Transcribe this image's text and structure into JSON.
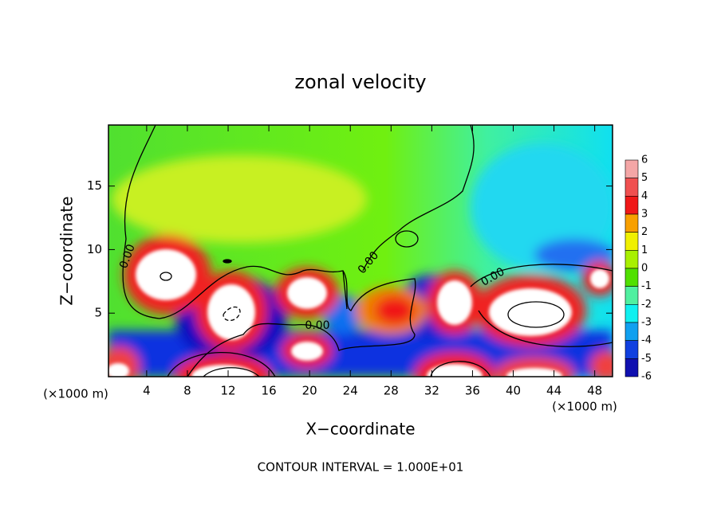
{
  "chart_data": {
    "type": "contour",
    "title": "zonal velocity",
    "xlabel": "X−coordinate",
    "ylabel": "Z−coordinate",
    "x_unit": "(×1000 m)",
    "footer": "CONTOUR INTERVAL = 1.000E+01",
    "xlim": [
      0.25,
      49.75
    ],
    "ylim": [
      0,
      19.8
    ],
    "xticks": [
      4,
      8,
      12,
      16,
      20,
      24,
      28,
      32,
      36,
      40,
      44,
      48
    ],
    "yticks": [
      5,
      10,
      15
    ],
    "contour_labels": [
      "0.00",
      "0.00",
      "0.00",
      "0.00"
    ],
    "colorbar": {
      "ticks": [
        6,
        5,
        4,
        3,
        2,
        1,
        0,
        -1,
        -2,
        -3,
        -4,
        -5,
        -6
      ],
      "colors": [
        "#f4a6a6",
        "#f05050",
        "#f01818",
        "#f8a000",
        "#f0f000",
        "#a8f000",
        "#50e000",
        "#50f0a0",
        "#10f0f0",
        "#10a0f0",
        "#1040e0",
        "#1010b0"
      ]
    }
  }
}
